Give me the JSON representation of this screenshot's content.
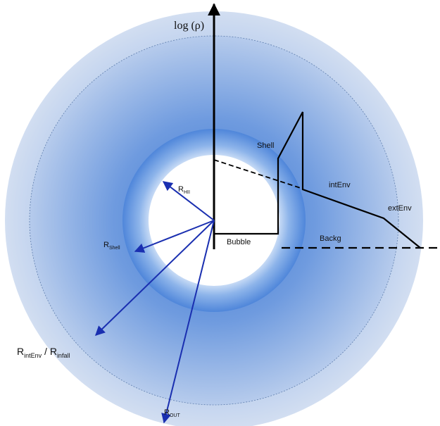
{
  "y_axis_label": "log (ρ)",
  "regions": {
    "shell": "Shell",
    "int_env": "intEnv",
    "ext_env": "extEnv",
    "backg": "Backg",
    "bubble": "Bubble"
  },
  "radii": {
    "r_hii": {
      "main": "R",
      "sub": "HII"
    },
    "r_shell": {
      "main": "R",
      "sub": "Shell"
    },
    "r_int_env": {
      "main": "R",
      "sub": "intEnv",
      "sep": " / ",
      "main2": "R",
      "sub2": "infall"
    },
    "r_out": {
      "main": "R",
      "sub": "OUT"
    }
  },
  "colors": {
    "outer_zone": "#c9d7ec",
    "inner_zone": "#7fa7df",
    "shell_ring": "#6d9ce0",
    "bubble": "#ffffff",
    "radius_arrows": "#1a2fb0",
    "profile": "#000000"
  }
}
